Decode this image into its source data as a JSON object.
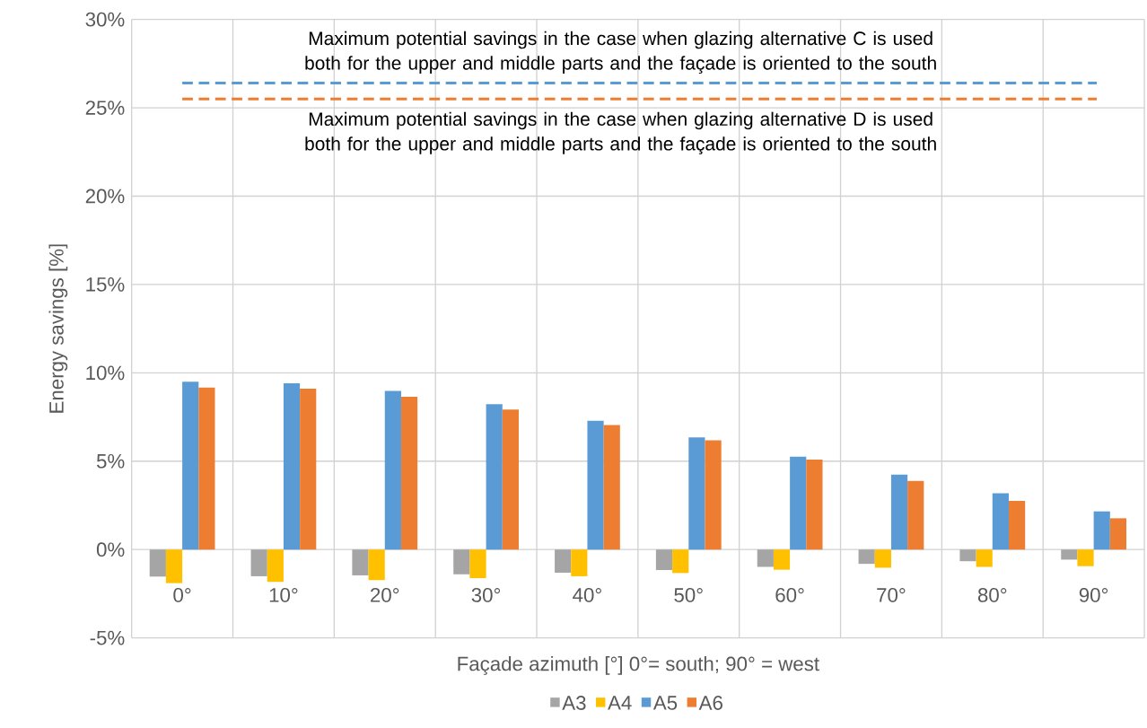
{
  "chart_data": {
    "type": "bar",
    "xlabel": "Façade azimuth [°] 0°= south; 90° = west",
    "ylabel": "Energy savings [%]",
    "categories": [
      "0°",
      "10°",
      "20°",
      "30°",
      "40°",
      "50°",
      "60°",
      "70°",
      "80°",
      "90°"
    ],
    "series": [
      {
        "name": "A3",
        "color": "#a5a5a5",
        "values": [
          -1.53,
          -1.51,
          -1.46,
          -1.4,
          -1.31,
          -1.16,
          -0.98,
          -0.81,
          -0.66,
          -0.57
        ]
      },
      {
        "name": "A4",
        "color": "#ffc000",
        "values": [
          -1.9,
          -1.83,
          -1.73,
          -1.62,
          -1.51,
          -1.33,
          -1.14,
          -1.03,
          -0.98,
          -0.94
        ]
      },
      {
        "name": "A5",
        "color": "#5b9bd5",
        "values": [
          9.5,
          9.41,
          8.97,
          8.23,
          7.29,
          6.35,
          5.26,
          4.24,
          3.19,
          2.16
        ]
      },
      {
        "name": "A6",
        "color": "#ed7d31",
        "values": [
          9.17,
          9.1,
          8.65,
          7.92,
          7.05,
          6.18,
          5.09,
          3.89,
          2.75,
          1.77
        ]
      }
    ],
    "ylim": [
      -5,
      30
    ],
    "yticks": [
      {
        "value": -5,
        "label": "-5%"
      },
      {
        "value": 0,
        "label": "0%"
      },
      {
        "value": 5,
        "label": "5%"
      },
      {
        "value": 10,
        "label": "10%"
      },
      {
        "value": 15,
        "label": "15%"
      },
      {
        "value": 20,
        "label": "20%"
      },
      {
        "value": 25,
        "label": "25%"
      },
      {
        "value": 30,
        "label": "30%"
      }
    ],
    "ref_lines": [
      {
        "axis": "y",
        "value": 26.4,
        "label": "Maximum potential savings in the case when glazing alternative C is used both for the upper and middle parts and the façade is oriented to the south",
        "color": "#5b9bd5",
        "line_style": "dashed"
      },
      {
        "axis": "y",
        "value": 25.5,
        "label": "Maximum potential savings in the case when glazing alternative D is used both for the upper and middle parts and the façade is oriented to the south",
        "color": "#ed7d31",
        "line_style": "dashed"
      }
    ],
    "grid": true,
    "legend": "bottom"
  }
}
